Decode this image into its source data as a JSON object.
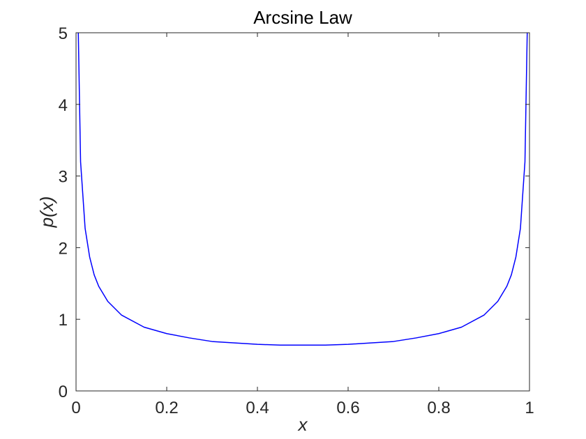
{
  "chart_data": {
    "type": "line",
    "title": "Arcsine Law",
    "xlabel": "x",
    "ylabel": "p(x)",
    "xlim": [
      0,
      1
    ],
    "ylim": [
      0,
      5
    ],
    "xticks": [
      0,
      0.2,
      0.4,
      0.6,
      0.8,
      1
    ],
    "xtick_labels": [
      "0",
      "0.2",
      "0.4",
      "0.6",
      "0.8",
      "1"
    ],
    "yticks": [
      0,
      1,
      2,
      3,
      4,
      5
    ],
    "ytick_labels": [
      "0",
      "1",
      "2",
      "3",
      "4",
      "5"
    ],
    "grid": false,
    "series": [
      {
        "color": "#0000ff",
        "x": [
          0.005,
          0.01,
          0.02,
          0.03,
          0.04,
          0.05,
          0.07,
          0.1,
          0.15,
          0.2,
          0.25,
          0.3,
          0.35,
          0.4,
          0.45,
          0.5,
          0.55,
          0.6,
          0.65,
          0.7,
          0.75,
          0.8,
          0.85,
          0.9,
          0.93,
          0.95,
          0.96,
          0.97,
          0.98,
          0.99,
          0.995
        ],
        "y": [
          5.0,
          3.2,
          2.27,
          1.87,
          1.62,
          1.46,
          1.25,
          1.06,
          0.89,
          0.8,
          0.74,
          0.69,
          0.67,
          0.65,
          0.64,
          0.64,
          0.64,
          0.65,
          0.67,
          0.69,
          0.74,
          0.8,
          0.89,
          1.06,
          1.25,
          1.46,
          1.62,
          1.87,
          2.27,
          3.2,
          5.0
        ]
      }
    ]
  }
}
